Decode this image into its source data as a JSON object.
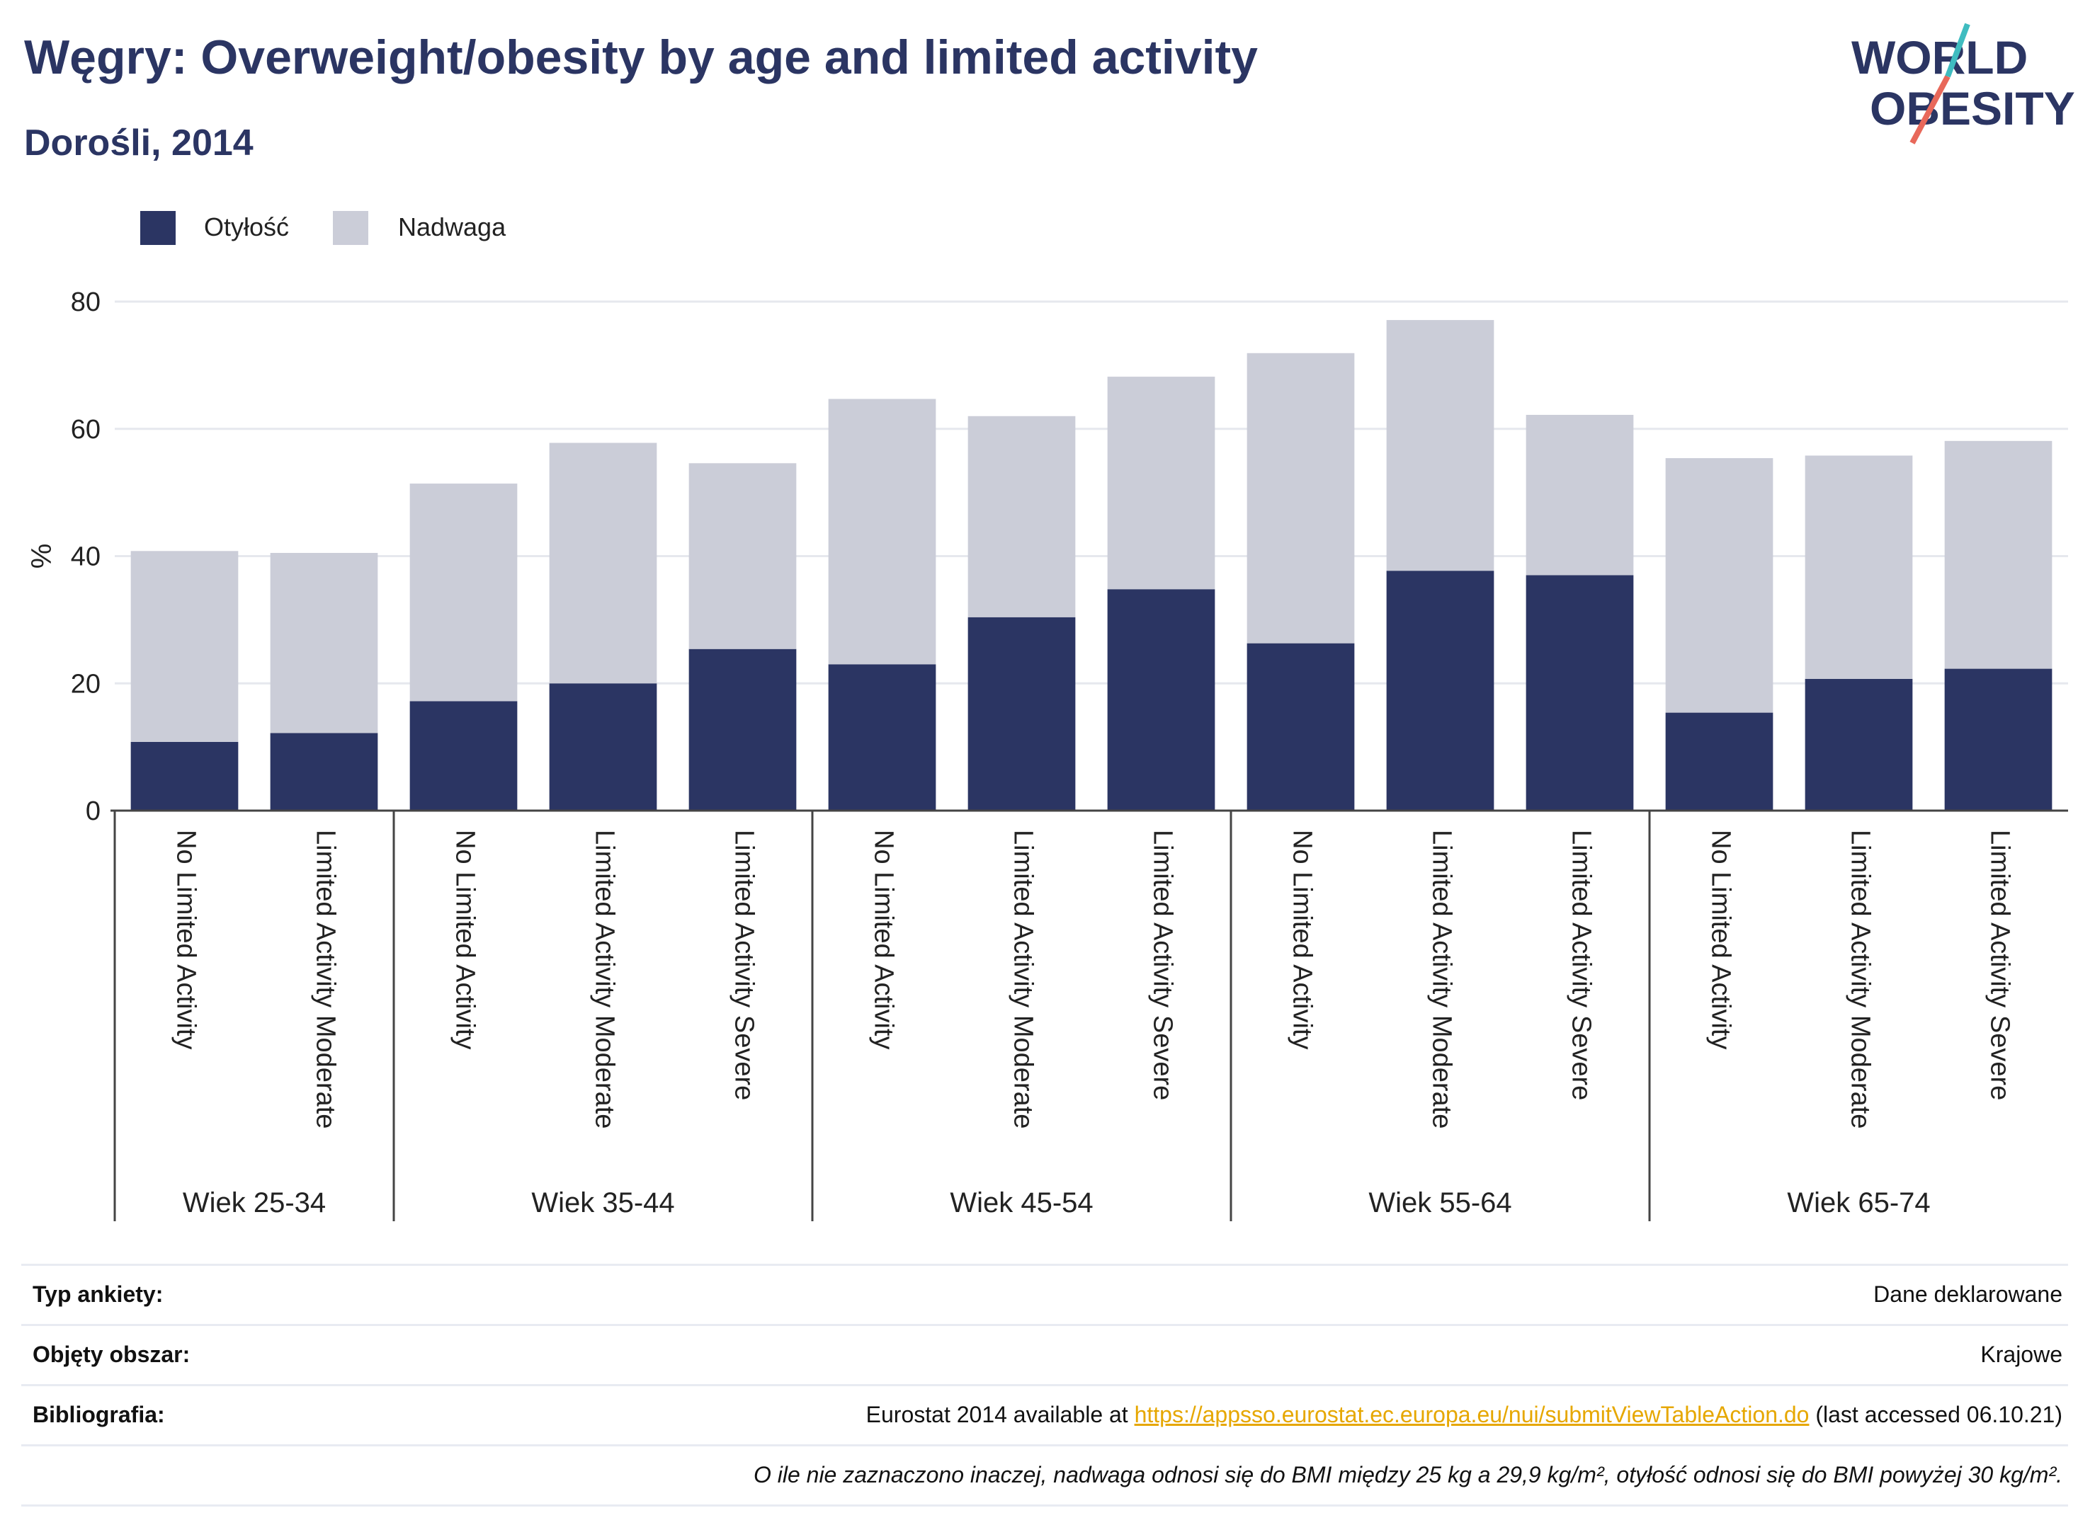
{
  "header": {
    "title": "Węgry: Overweight/obesity by age and limited activity",
    "subtitle": "Dorośli, 2014"
  },
  "logo": {
    "line1": "WORLD",
    "line2": "OBESITY",
    "colors": {
      "text": "#2b3563",
      "slash_red": "#e8685a",
      "slash_teal": "#3fbcc0"
    }
  },
  "legend": {
    "items": [
      {
        "label": "Otyłość",
        "color": "#2b3563"
      },
      {
        "label": "Nadwaga",
        "color": "#cbcdd8"
      }
    ]
  },
  "chart_data": {
    "type": "bar",
    "stacked": true,
    "ylabel": "%",
    "ylim": [
      0,
      80
    ],
    "yticks": [
      0,
      20,
      40,
      60,
      80
    ],
    "grid": true,
    "legend_position": "top-left",
    "groups": [
      {
        "label": "Wiek 25-34",
        "categories": [
          "No Limited Activity",
          "Limited Activity Moderate"
        ]
      },
      {
        "label": "Wiek 35-44",
        "categories": [
          "No Limited Activity",
          "Limited Activity Moderate",
          "Limited Activity Severe"
        ]
      },
      {
        "label": "Wiek 45-54",
        "categories": [
          "No Limited Activity",
          "Limited Activity Moderate",
          "Limited Activity Severe"
        ]
      },
      {
        "label": "Wiek 55-64",
        "categories": [
          "No Limited Activity",
          "Limited Activity Moderate",
          "Limited Activity Severe"
        ]
      },
      {
        "label": "Wiek 65-74",
        "categories": [
          "No Limited Activity",
          "Limited Activity Moderate",
          "Limited Activity Severe"
        ]
      }
    ],
    "series": [
      {
        "name": "Otyłość",
        "color": "#2b3563",
        "values": [
          10.8,
          12.2,
          17.2,
          20.0,
          25.4,
          23.0,
          30.4,
          34.8,
          26.3,
          37.7,
          37.0,
          15.4,
          20.7,
          22.3
        ]
      },
      {
        "name": "Nadwaga",
        "color": "#cbcdd8",
        "values": [
          30.0,
          28.3,
          34.2,
          37.8,
          29.2,
          41.7,
          31.6,
          33.4,
          45.6,
          39.4,
          25.2,
          40.0,
          35.1,
          35.8
        ]
      }
    ]
  },
  "info": {
    "survey_label": "Typ ankiety:",
    "survey_value": "Dane deklarowane",
    "area_label": "Objęty obszar:",
    "area_value": "Krajowe",
    "biblio_label": "Bibliografia:",
    "biblio_prefix": "Eurostat 2014 available at ",
    "biblio_link": "https://appsso.eurostat.ec.europa.eu/nui/submitViewTableAction.do",
    "biblio_suffix": " (last accessed 06.10.21)",
    "note": "O ile nie zaznaczono inaczej, nadwaga odnosi się do BMI między 25 kg a 29,9 kg/m², otyłość odnosi się do BMI powyżej 30 kg/m²."
  }
}
